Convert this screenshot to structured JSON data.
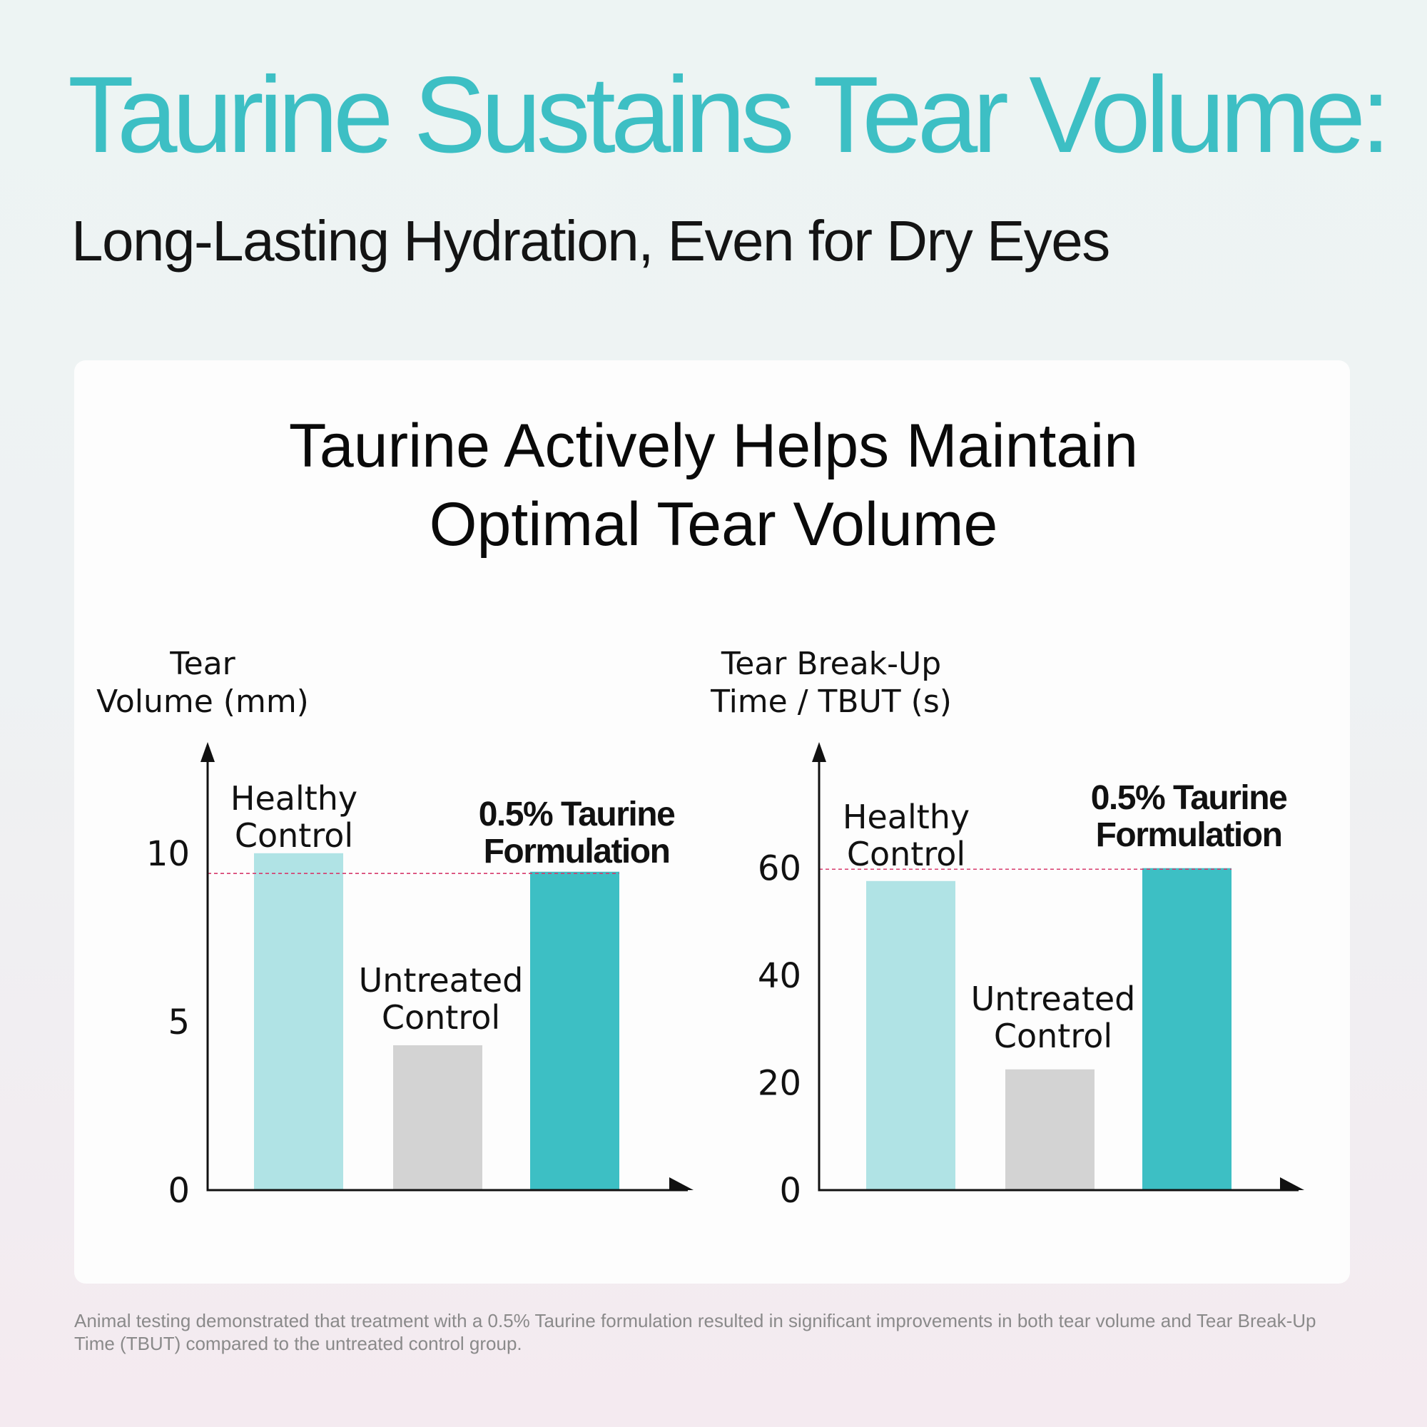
{
  "header": {
    "title": "Taurine Sustains Tear Volume:",
    "subtitle": "Long-Lasting Hydration, Even for Dry Eyes"
  },
  "card": {
    "title_line1": "Taurine Actively Helps Maintain",
    "title_line2": "Optimal Tear Volume"
  },
  "footnote": "Animal testing demonstrated that treatment with a 0.5% Taurine formulation resulted in significant improvements in both tear volume and Tear Break-Up Time (TBUT) compared to the untreated control group.",
  "colors": {
    "title_accent": "#3dbfc4",
    "healthy_bar": "#b0e3e5",
    "untreated_bar": "#d3d3d3",
    "taurine_bar": "#3dbfc4",
    "reference_line": "#d63a6c",
    "axis": "#111111"
  },
  "chart_data": [
    {
      "type": "bar",
      "ylabel": [
        "Tear",
        "Volume (mm)"
      ],
      "categories": [
        {
          "label": [
            "Healthy",
            "Control"
          ],
          "bold": false
        },
        {
          "label": [
            "Untreated",
            "Control"
          ],
          "bold": false
        },
        {
          "label": [
            "0.5% Taurine",
            "Formulation"
          ],
          "bold": true
        }
      ],
      "values": [
        10,
        4.3,
        9.45
      ],
      "bar_colors": [
        "#b0e3e5",
        "#d3d3d3",
        "#3dbfc4"
      ],
      "yticks": [
        0,
        5,
        10
      ],
      "ylim": [
        0,
        13.3
      ],
      "reference_line": 9.4,
      "reference_line_style": "dashed"
    },
    {
      "type": "bar",
      "ylabel": [
        "Tear Break-Up",
        "Time / TBUT (s)"
      ],
      "categories": [
        {
          "label": [
            "Healthy",
            "Control"
          ],
          "bold": false
        },
        {
          "label": [
            "Untreated",
            "Control"
          ],
          "bold": false
        },
        {
          "label": [
            "0.5% Taurine",
            "Formulation"
          ],
          "bold": true
        }
      ],
      "values": [
        57.6,
        22.5,
        60
      ],
      "bar_colors": [
        "#b0e3e5",
        "#d3d3d3",
        "#3dbfc4"
      ],
      "yticks": [
        0,
        20,
        40,
        60
      ],
      "ylim": [
        0,
        83.5
      ],
      "reference_line": 59.8,
      "reference_line_style": "dashed"
    }
  ]
}
